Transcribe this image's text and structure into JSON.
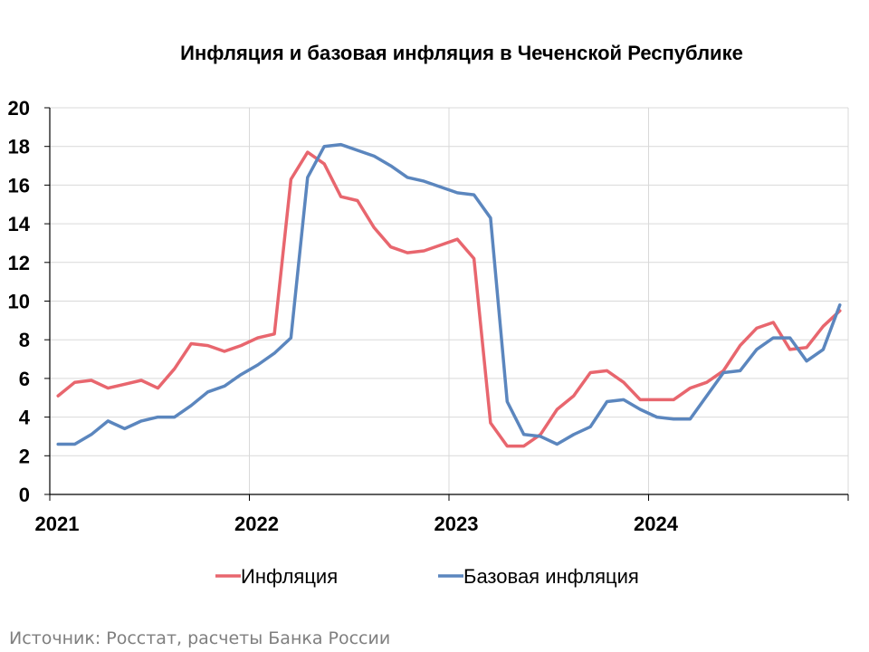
{
  "chart_data": {
    "type": "line",
    "title": "Инфляция и базовая инфляция в Чеченской Республике",
    "xlabel": "",
    "ylabel": "",
    "ylim": [
      0,
      20
    ],
    "yticks": [
      "0",
      "2",
      "4",
      "6",
      "8",
      "10",
      "12",
      "14",
      "16",
      "18",
      "20"
    ],
    "xticks": [
      "2021",
      "2022",
      "2023",
      "2024"
    ],
    "x": [
      "2021-01",
      "2021-02",
      "2021-03",
      "2021-04",
      "2021-05",
      "2021-06",
      "2021-07",
      "2021-08",
      "2021-09",
      "2021-10",
      "2021-11",
      "2021-12",
      "2022-01",
      "2022-02",
      "2022-03",
      "2022-04",
      "2022-05",
      "2022-06",
      "2022-07",
      "2022-08",
      "2022-09",
      "2022-10",
      "2022-11",
      "2022-12",
      "2023-01",
      "2023-02",
      "2023-03",
      "2023-04",
      "2023-05",
      "2023-06",
      "2023-07",
      "2023-08",
      "2023-09",
      "2023-10",
      "2023-11",
      "2023-12",
      "2024-01",
      "2024-02",
      "2024-03",
      "2024-04",
      "2024-05",
      "2024-06",
      "2024-07",
      "2024-08",
      "2024-09",
      "2024-10",
      "2024-11",
      "2024-12"
    ],
    "grid": true,
    "legend_position": "bottom",
    "series": [
      {
        "name": "Инфляция",
        "color": "#e8666e",
        "values": [
          5.1,
          5.8,
          5.9,
          5.5,
          5.7,
          5.9,
          5.5,
          6.5,
          7.8,
          7.7,
          7.4,
          7.7,
          8.1,
          8.3,
          16.3,
          17.7,
          17.1,
          15.4,
          15.2,
          13.8,
          12.8,
          12.5,
          12.6,
          12.9,
          13.2,
          12.2,
          3.7,
          2.5,
          2.5,
          3.1,
          4.4,
          5.1,
          6.3,
          6.4,
          5.8,
          4.9,
          4.9,
          4.9,
          5.5,
          5.8,
          6.4,
          7.7,
          8.6,
          8.9,
          7.5,
          7.6,
          8.7,
          9.5
        ]
      },
      {
        "name": "Базовая инфляция",
        "color": "#5b86be",
        "values": [
          2.6,
          2.6,
          3.1,
          3.8,
          3.4,
          3.8,
          4.0,
          4.0,
          4.6,
          5.3,
          5.6,
          6.2,
          6.7,
          7.3,
          8.1,
          16.4,
          18.0,
          18.1,
          17.8,
          17.5,
          17.0,
          16.4,
          16.2,
          15.9,
          15.6,
          15.5,
          14.3,
          4.8,
          3.1,
          3.0,
          2.6,
          3.1,
          3.5,
          4.8,
          4.9,
          4.4,
          4.0,
          3.9,
          3.9,
          5.1,
          6.3,
          6.4,
          7.5,
          8.1,
          8.1,
          6.9,
          7.5,
          9.8
        ]
      }
    ]
  },
  "source": "Источник: Росстат, расчеты Банка России"
}
